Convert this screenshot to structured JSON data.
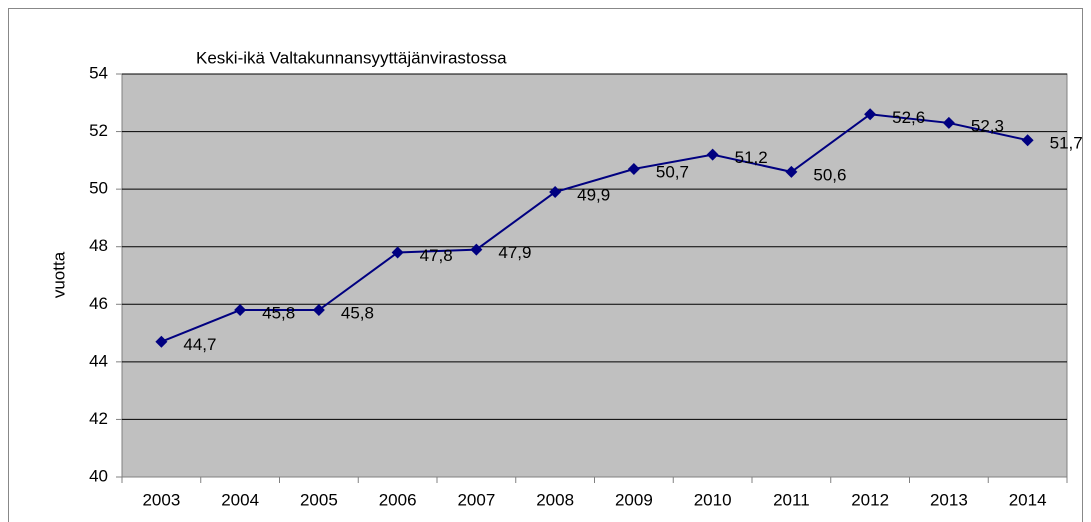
{
  "chart_data": {
    "type": "line",
    "title": "Keski-ikä Valtakunnansyyttäjänvirastossa",
    "y_label": "vuotta",
    "categories": [
      "2003",
      "2004",
      "2005",
      "2006",
      "2007",
      "2008",
      "2009",
      "2010",
      "2011",
      "2012",
      "2013",
      "2014"
    ],
    "series": [
      {
        "name": "Keski-ikä",
        "color": "#000080",
        "values": [
          44.7,
          45.8,
          45.8,
          47.8,
          47.9,
          49.9,
          50.7,
          51.2,
          50.6,
          52.6,
          52.3,
          51.7
        ],
        "value_labels": [
          "44,7",
          "45,8",
          "45,8",
          "47,8",
          "47,9",
          "49,9",
          "50,7",
          "51,2",
          "50,6",
          "52,6",
          "52,3",
          "51,7"
        ]
      }
    ],
    "ylim": [
      40,
      54
    ],
    "yticks": [
      40,
      42,
      44,
      46,
      48,
      50,
      52,
      54
    ],
    "grid": true,
    "legend": false
  }
}
